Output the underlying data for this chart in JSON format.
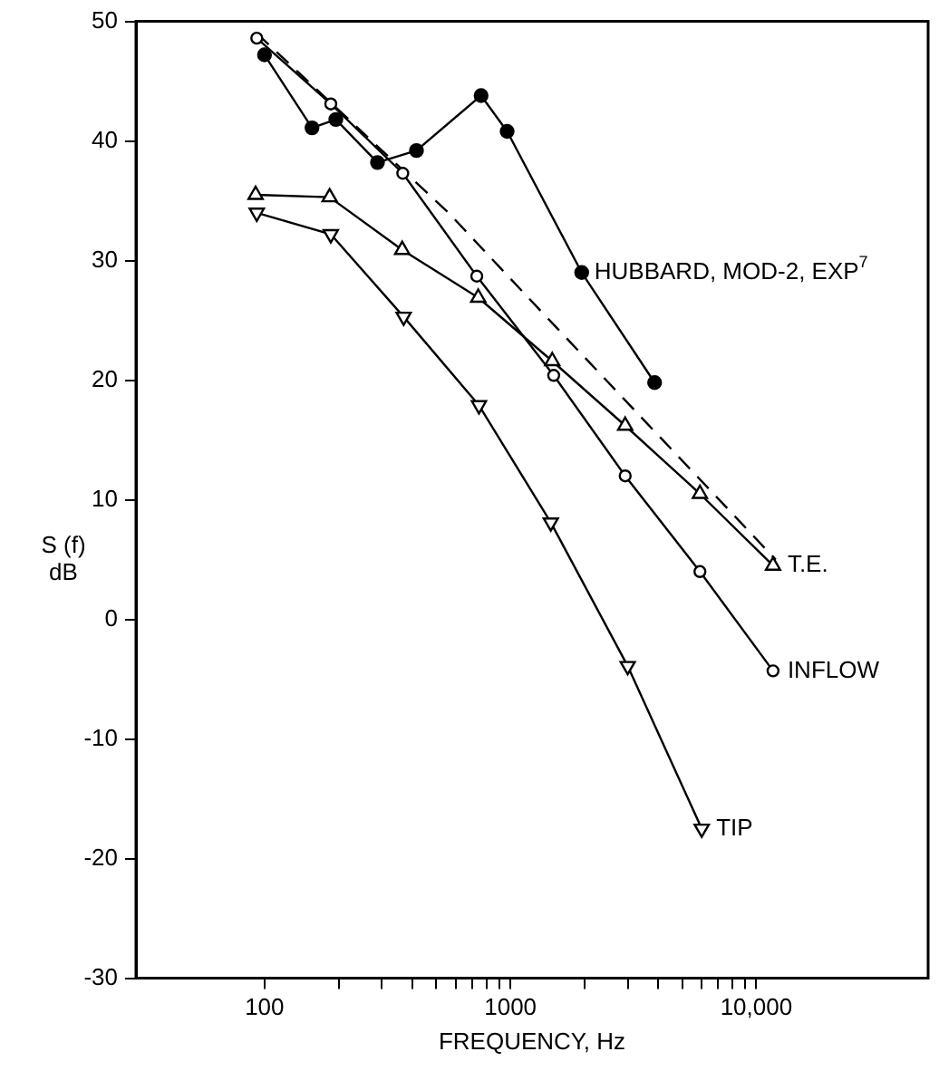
{
  "chart_data": {
    "type": "line",
    "xlabel": "FREQUENCY, Hz",
    "ylabel": "S (f)\ndB",
    "log": "x",
    "grid": false,
    "legend": false,
    "xlim": [
      30,
      50000
    ],
    "xticks": [
      100,
      {
        "value": 200,
        "label": null
      },
      {
        "value": 300,
        "label": null
      },
      {
        "value": 400,
        "label": null
      },
      {
        "value": 500,
        "label": null
      },
      {
        "value": 600,
        "label": null
      },
      {
        "value": 700,
        "label": null
      },
      {
        "value": 800,
        "label": null
      },
      {
        "value": 900,
        "label": null
      },
      1000,
      {
        "value": 2000,
        "label": null
      },
      {
        "value": 3000,
        "label": null
      },
      {
        "value": 4000,
        "label": null
      },
      {
        "value": 5000,
        "label": null
      },
      {
        "value": 6000,
        "label": null
      },
      {
        "value": 7000,
        "label": null
      },
      {
        "value": 8000,
        "label": null
      },
      {
        "value": 9000,
        "label": null
      },
      {
        "value": 10000,
        "label": "10,000"
      }
    ],
    "ylim": [
      -30,
      50
    ],
    "yticks": [
      -30,
      -20,
      -10,
      0,
      10,
      20,
      30,
      40,
      50
    ],
    "series": [
      {
        "color": "#000000",
        "marker": "filled_circle",
        "x": [
          100,
          156,
          195,
          288,
          415,
          760,
          970,
          1950,
          3860
        ],
        "values": [
          47.2,
          41.1,
          41.8,
          38.2,
          39.2,
          43.8,
          40.8,
          29.0,
          19.8
        ]
      },
      {
        "name": "INFLOW",
        "color": "#000000",
        "marker": "circle",
        "x": [
          93,
          186,
          365,
          730,
          1500,
          2930,
          5900,
          11700
        ],
        "values": [
          48.6,
          43.1,
          37.3,
          28.7,
          20.4,
          12.0,
          4.0,
          -4.3
        ]
      },
      {
        "name": "T.E.",
        "color": "#000000",
        "marker": "triangle",
        "x": [
          92,
          184,
          363,
          740,
          1480,
          2930,
          5900,
          11700
        ],
        "values": [
          35.5,
          35.3,
          30.9,
          26.9,
          21.6,
          16.2,
          10.5,
          4.5
        ]
      },
      {
        "name": "TIP",
        "color": "#000000",
        "marker": "triangle_down",
        "x": [
          93,
          186,
          368,
          745,
          1460,
          3000,
          6000
        ],
        "values": [
          34.0,
          32.2,
          25.3,
          17.9,
          8.1,
          -3.9,
          -17.5
        ]
      },
      {
        "color": "#000000",
        "marker": "none",
        "line_style": "dashed",
        "x": [
          93,
          560,
          1300,
          12000
        ],
        "values": [
          49,
          34,
          26,
          5
        ]
      }
    ],
    "annotations": [
      {
        "text": "HUBBARD, MOD-2, EXP$^{7}$",
        "x": 1950,
        "y": 29.0
      }
    ]
  }
}
